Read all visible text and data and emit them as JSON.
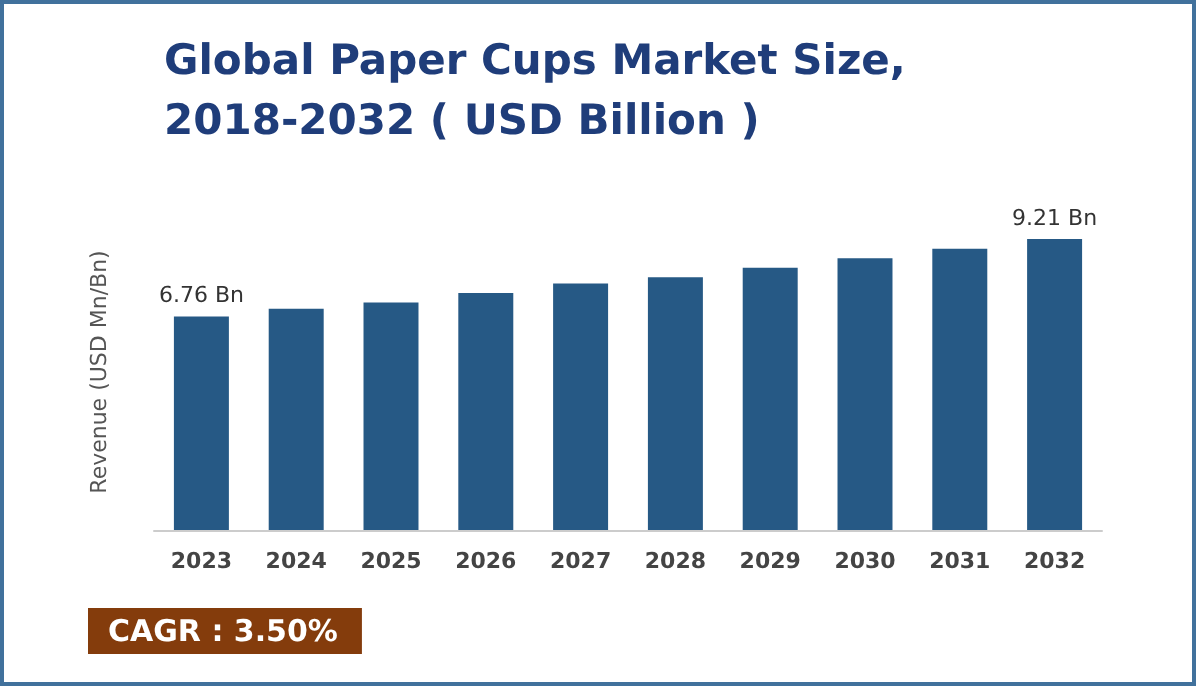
{
  "chart_data": {
    "type": "bar",
    "title": "Global Paper Cups Market Size, 2018-2032 ( USD Billion )",
    "ylabel": "Revenue (USD Mn/Bn)",
    "categories": [
      "2023",
      "2024",
      "2025",
      "2026",
      "2027",
      "2028",
      "2029",
      "2030",
      "2031",
      "2032"
    ],
    "values": [
      6.76,
      7.0,
      7.2,
      7.5,
      7.8,
      8.0,
      8.3,
      8.6,
      8.9,
      9.21
    ],
    "value_labels": [
      "6.76 Bn",
      null,
      null,
      null,
      null,
      null,
      null,
      null,
      null,
      "9.21 Bn"
    ],
    "color": "#265985",
    "annotations": [
      "CAGR : 3.50%"
    ]
  }
}
